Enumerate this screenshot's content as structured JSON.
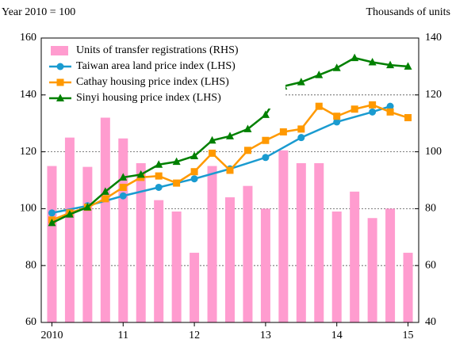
{
  "chart_data": {
    "type": "combo",
    "y_label": "Year 2010 = 100",
    "y2_label": "Thousands of units",
    "x": [
      2010,
      2010.25,
      2010.5,
      2010.75,
      2011,
      2011.25,
      2011.5,
      2011.75,
      2012,
      2012.25,
      2012.5,
      2012.75,
      2013,
      2013.25,
      2013.5,
      2013.75,
      2014,
      2014.25,
      2014.5,
      2014.75,
      2015
    ],
    "xlim": [
      2009.85,
      2015.15
    ],
    "xticks": [
      2010,
      {
        "value": 2011,
        "label": "11"
      },
      {
        "value": 2012,
        "label": "12"
      },
      {
        "value": 2013,
        "label": "13"
      },
      {
        "value": 2014,
        "label": "14"
      },
      {
        "value": 2015,
        "label": "15"
      }
    ],
    "ylim": [
      60,
      160
    ],
    "yticks": [
      60,
      80,
      100,
      120,
      140,
      160
    ],
    "y2lim": [
      40,
      140
    ],
    "y2ticks": [
      40,
      60,
      80,
      100,
      120,
      140
    ],
    "grid": true,
    "legend": "upper left",
    "series": [
      {
        "name": "Units of transfer registrations (RHS)",
        "type": "bar",
        "axis": "y2",
        "color": "#ff9ccf",
        "values": [
          95,
          105,
          94.7,
          112,
          104.7,
          96,
          83,
          79,
          64.5,
          95,
          84,
          88,
          80,
          100.5,
          96,
          96,
          79,
          86,
          76.7,
          80,
          64.5
        ]
      },
      {
        "name": "Taiwan area land price index (LHS)",
        "type": "line",
        "color": "#1a9bd0",
        "marker": "circle",
        "x": [
          2010,
          2010.5,
          2011,
          2011.5,
          2012,
          2012.5,
          2013,
          2013.5,
          2014,
          2014.5,
          2014.75
        ],
        "values": [
          98.5,
          101,
          104.5,
          107.5,
          110.5,
          114,
          118,
          125,
          130.5,
          134,
          136
        ]
      },
      {
        "name": "Cathay housing price index (LHS)",
        "type": "line",
        "color": "#ff9900",
        "marker": "square",
        "values": [
          96,
          98.5,
          100.5,
          103.5,
          107.5,
          111,
          111.5,
          109,
          113,
          119.5,
          113.5,
          120.5,
          124,
          127,
          128,
          136,
          132.5,
          135,
          136.5,
          134,
          132
        ]
      },
      {
        "name": "Sinyi housing price index (LHS)",
        "type": "line",
        "color": "#008000",
        "marker": "triangle",
        "values": [
          95,
          98,
          100.5,
          106,
          111,
          112,
          115.5,
          116.5,
          118.5,
          124,
          125.5,
          128,
          133,
          143,
          144.5,
          147,
          149.5,
          153,
          151.5,
          150.5,
          150
        ]
      }
    ]
  }
}
